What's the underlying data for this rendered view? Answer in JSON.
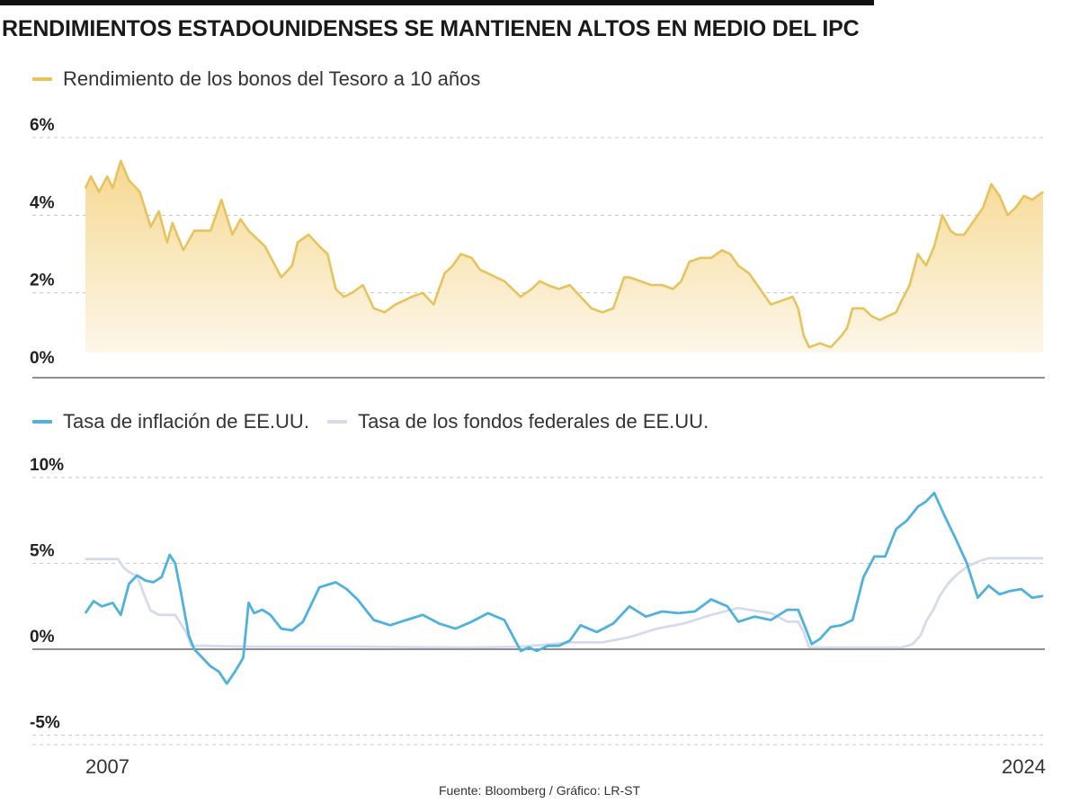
{
  "title": "RENDIMIENTOS ESTADOUNIDENSES SE MANTIENEN ALTOS EN MEDIO DEL IPC",
  "source": "Fuente:  Bloomberg / Gráfico: LR-ST",
  "colors": {
    "yield": "#e8c35c",
    "yield_fill_top": "#f5d58a",
    "yield_fill_bottom": "#fdf6e6",
    "inflation": "#4fb1de",
    "fed": "#d5dbef",
    "grid": "#c8c8c8",
    "axis": "#4a4a4a"
  },
  "chart_data": [
    {
      "type": "area",
      "legend_placement": "top-left",
      "series": [
        {
          "name": "Rendimiento de los bonos del Tesoro a 10 años",
          "x": [
            2007.0,
            2007.1,
            2007.25,
            2007.4,
            2007.5,
            2007.65,
            2007.8,
            2008.0,
            2008.2,
            2008.35,
            2008.5,
            2008.6,
            2008.8,
            2009.0,
            2009.3,
            2009.5,
            2009.7,
            2009.85,
            2010.0,
            2010.3,
            2010.6,
            2010.8,
            2010.9,
            2011.1,
            2011.3,
            2011.45,
            2011.6,
            2011.75,
            2011.9,
            2012.1,
            2012.3,
            2012.5,
            2012.7,
            2012.85,
            2013.0,
            2013.2,
            2013.4,
            2013.6,
            2013.75,
            2013.9,
            2014.1,
            2014.25,
            2014.4,
            2014.55,
            2014.7,
            2014.85,
            2015.0,
            2015.1,
            2015.2,
            2015.35,
            2015.5,
            2015.7,
            2015.9,
            2016.1,
            2016.3,
            2016.5,
            2016.7,
            2016.9,
            2017.0,
            2017.2,
            2017.4,
            2017.6,
            2017.8,
            2017.95,
            2018.1,
            2018.3,
            2018.5,
            2018.7,
            2018.85,
            2019.0,
            2019.2,
            2019.4,
            2019.6,
            2019.8,
            2020.0,
            2020.1,
            2020.2,
            2020.3,
            2020.5,
            2020.7,
            2020.9,
            2021.0,
            2021.1,
            2021.3,
            2021.45,
            2021.6,
            2021.75,
            2021.9,
            2022.0,
            2022.15,
            2022.3,
            2022.45,
            2022.6,
            2022.75,
            2022.9,
            2023.0,
            2023.15,
            2023.3,
            2023.5,
            2023.65,
            2023.8,
            2023.95,
            2024.1,
            2024.25,
            2024.4,
            2024.6
          ],
          "values": [
            4.7,
            5.0,
            4.6,
            5.0,
            4.7,
            5.4,
            4.9,
            4.6,
            3.7,
            4.1,
            3.3,
            3.8,
            3.1,
            3.6,
            3.6,
            4.4,
            3.5,
            3.9,
            3.6,
            3.2,
            2.4,
            2.7,
            3.3,
            3.5,
            3.2,
            3.0,
            2.1,
            1.9,
            2.0,
            2.2,
            1.6,
            1.5,
            1.7,
            1.8,
            1.9,
            2.0,
            1.7,
            2.5,
            2.7,
            3.0,
            2.9,
            2.6,
            2.5,
            2.4,
            2.3,
            2.1,
            1.9,
            2.0,
            2.1,
            2.3,
            2.2,
            2.1,
            2.2,
            1.9,
            1.6,
            1.5,
            1.6,
            2.4,
            2.4,
            2.3,
            2.2,
            2.2,
            2.1,
            2.3,
            2.8,
            2.9,
            2.9,
            3.1,
            3.0,
            2.7,
            2.5,
            2.1,
            1.7,
            1.8,
            1.9,
            1.6,
            0.9,
            0.6,
            0.7,
            0.6,
            0.9,
            1.1,
            1.6,
            1.6,
            1.4,
            1.3,
            1.4,
            1.5,
            1.8,
            2.2,
            3.0,
            2.7,
            3.2,
            4.0,
            3.6,
            3.5,
            3.5,
            3.8,
            4.2,
            4.8,
            4.5,
            4.0,
            4.2,
            4.5,
            4.4,
            4.6
          ]
        }
      ],
      "xlim": [
        2007,
        2024.6
      ],
      "ylim": [
        -0.4,
        6.0
      ],
      "yticks": [
        0,
        2,
        4,
        6
      ],
      "ytick_labels": [
        "0%",
        "2%",
        "4%",
        "6%"
      ],
      "grid": true
    },
    {
      "type": "line",
      "legend_placement": "top-left",
      "series": [
        {
          "name": "Tasa de inflación de EE.UU.",
          "x": [
            2007.0,
            2007.15,
            2007.3,
            2007.5,
            2007.65,
            2007.8,
            2007.95,
            2008.1,
            2008.25,
            2008.4,
            2008.55,
            2008.65,
            2008.75,
            2008.9,
            2009.0,
            2009.15,
            2009.3,
            2009.45,
            2009.6,
            2009.75,
            2009.9,
            2010.0,
            2010.1,
            2010.25,
            2010.4,
            2010.6,
            2010.8,
            2011.0,
            2011.3,
            2011.6,
            2011.8,
            2012.0,
            2012.3,
            2012.6,
            2012.9,
            2013.2,
            2013.5,
            2013.8,
            2014.1,
            2014.4,
            2014.7,
            2015.0,
            2015.15,
            2015.3,
            2015.5,
            2015.7,
            2015.9,
            2016.1,
            2016.4,
            2016.7,
            2017.0,
            2017.3,
            2017.6,
            2017.9,
            2018.2,
            2018.5,
            2018.8,
            2019.0,
            2019.3,
            2019.6,
            2019.9,
            2020.1,
            2020.2,
            2020.35,
            2020.5,
            2020.7,
            2020.9,
            2021.1,
            2021.3,
            2021.5,
            2021.7,
            2021.9,
            2022.1,
            2022.3,
            2022.45,
            2022.6,
            2022.8,
            2023.0,
            2023.2,
            2023.4,
            2023.6,
            2023.8,
            2024.0,
            2024.2,
            2024.4,
            2024.6
          ],
          "values": [
            2.1,
            2.8,
            2.5,
            2.7,
            2.0,
            3.8,
            4.3,
            4.0,
            3.9,
            4.2,
            5.5,
            5.0,
            3.4,
            0.8,
            0.0,
            -0.5,
            -1.0,
            -1.3,
            -2.0,
            -1.3,
            -0.5,
            2.7,
            2.1,
            2.3,
            2.0,
            1.2,
            1.1,
            1.6,
            3.6,
            3.9,
            3.5,
            2.9,
            1.7,
            1.4,
            1.7,
            2.0,
            1.5,
            1.2,
            1.6,
            2.1,
            1.7,
            -0.1,
            0.1,
            -0.1,
            0.2,
            0.2,
            0.5,
            1.4,
            1.0,
            1.5,
            2.5,
            1.9,
            2.2,
            2.1,
            2.2,
            2.9,
            2.5,
            1.6,
            1.9,
            1.7,
            2.3,
            2.3,
            1.5,
            0.3,
            0.6,
            1.3,
            1.4,
            1.7,
            4.2,
            5.4,
            5.4,
            7.0,
            7.5,
            8.3,
            8.6,
            9.1,
            7.7,
            6.4,
            5.0,
            3.0,
            3.7,
            3.2,
            3.4,
            3.5,
            3.0,
            3.1
          ]
        },
        {
          "name": "Tasa de los fondos federales de EE.UU.",
          "x": [
            2007.0,
            2007.3,
            2007.6,
            2007.7,
            2007.8,
            2007.95,
            2008.1,
            2008.2,
            2008.35,
            2008.5,
            2008.65,
            2008.75,
            2008.85,
            2008.95,
            2009.1,
            2010.0,
            2012.0,
            2014.0,
            2015.0,
            2015.95,
            2016.5,
            2017.0,
            2017.5,
            2018.0,
            2018.5,
            2019.0,
            2019.6,
            2019.9,
            2020.1,
            2020.2,
            2020.3,
            2021.0,
            2022.0,
            2022.2,
            2022.35,
            2022.45,
            2022.6,
            2022.7,
            2022.85,
            2023.0,
            2023.2,
            2023.4,
            2023.6,
            2024.6
          ],
          "values": [
            5.25,
            5.25,
            5.25,
            4.75,
            4.5,
            4.25,
            3.0,
            2.25,
            2.0,
            2.0,
            2.0,
            1.5,
            1.0,
            0.2,
            0.2,
            0.15,
            0.15,
            0.1,
            0.15,
            0.4,
            0.4,
            0.7,
            1.2,
            1.5,
            2.0,
            2.4,
            2.1,
            1.6,
            1.6,
            1.0,
            0.1,
            0.1,
            0.1,
            0.3,
            0.8,
            1.6,
            2.4,
            3.1,
            3.8,
            4.3,
            4.8,
            5.1,
            5.3,
            5.3
          ]
        }
      ],
      "xlim": [
        2007,
        2024.6
      ],
      "ylim": [
        -5.5,
        10.0
      ],
      "yticks": [
        -5,
        0,
        5,
        10
      ],
      "ytick_labels": [
        "-5%",
        "0%",
        "5%",
        "10%"
      ],
      "xtick_labels": [
        "2007",
        "2024"
      ],
      "grid": true
    }
  ]
}
